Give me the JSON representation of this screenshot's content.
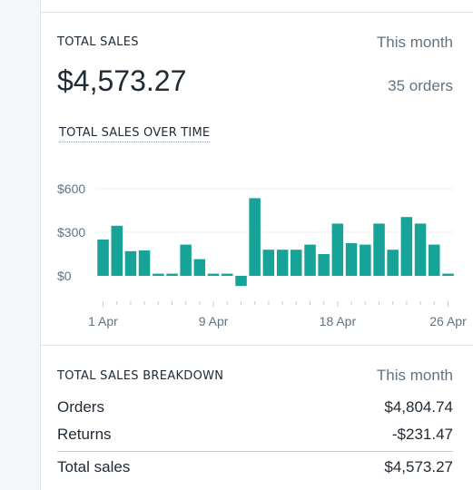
{
  "total_sales": {
    "title": "TOTAL SALES",
    "period": "This month",
    "amount": "$4,573.27",
    "orders": "35 orders"
  },
  "chart_title": "TOTAL SALES OVER TIME",
  "chart_data": {
    "type": "bar",
    "title": "TOTAL SALES OVER TIME",
    "y_ticks": [
      "$600",
      "$300",
      "$0"
    ],
    "y_tick_values": [
      600,
      300,
      0
    ],
    "x_tick_labels": [
      "1 Apr",
      "9 Apr",
      "18 Apr",
      "26 Apr"
    ],
    "x_tick_days": [
      1,
      9,
      18,
      26
    ],
    "ylim": [
      -80,
      650
    ],
    "bar_color": "#17a398",
    "grid": true,
    "days": [
      1,
      2,
      3,
      4,
      5,
      6,
      7,
      8,
      9,
      10,
      11,
      12,
      13,
      14,
      15,
      16,
      17,
      18,
      19,
      20,
      21,
      22,
      23,
      24,
      25,
      26
    ],
    "values": [
      250,
      345,
      170,
      175,
      15,
      15,
      215,
      115,
      15,
      15,
      -70,
      535,
      180,
      180,
      180,
      215,
      150,
      360,
      225,
      215,
      360,
      180,
      405,
      360,
      215,
      15
    ]
  },
  "breakdown": {
    "title": "TOTAL SALES BREAKDOWN",
    "period": "This month",
    "rows": [
      {
        "label": "Orders",
        "value": "$4,804.74"
      },
      {
        "label": "Returns",
        "value": "-$231.47"
      },
      {
        "label": "Total sales",
        "value": "$4,573.27"
      }
    ]
  }
}
